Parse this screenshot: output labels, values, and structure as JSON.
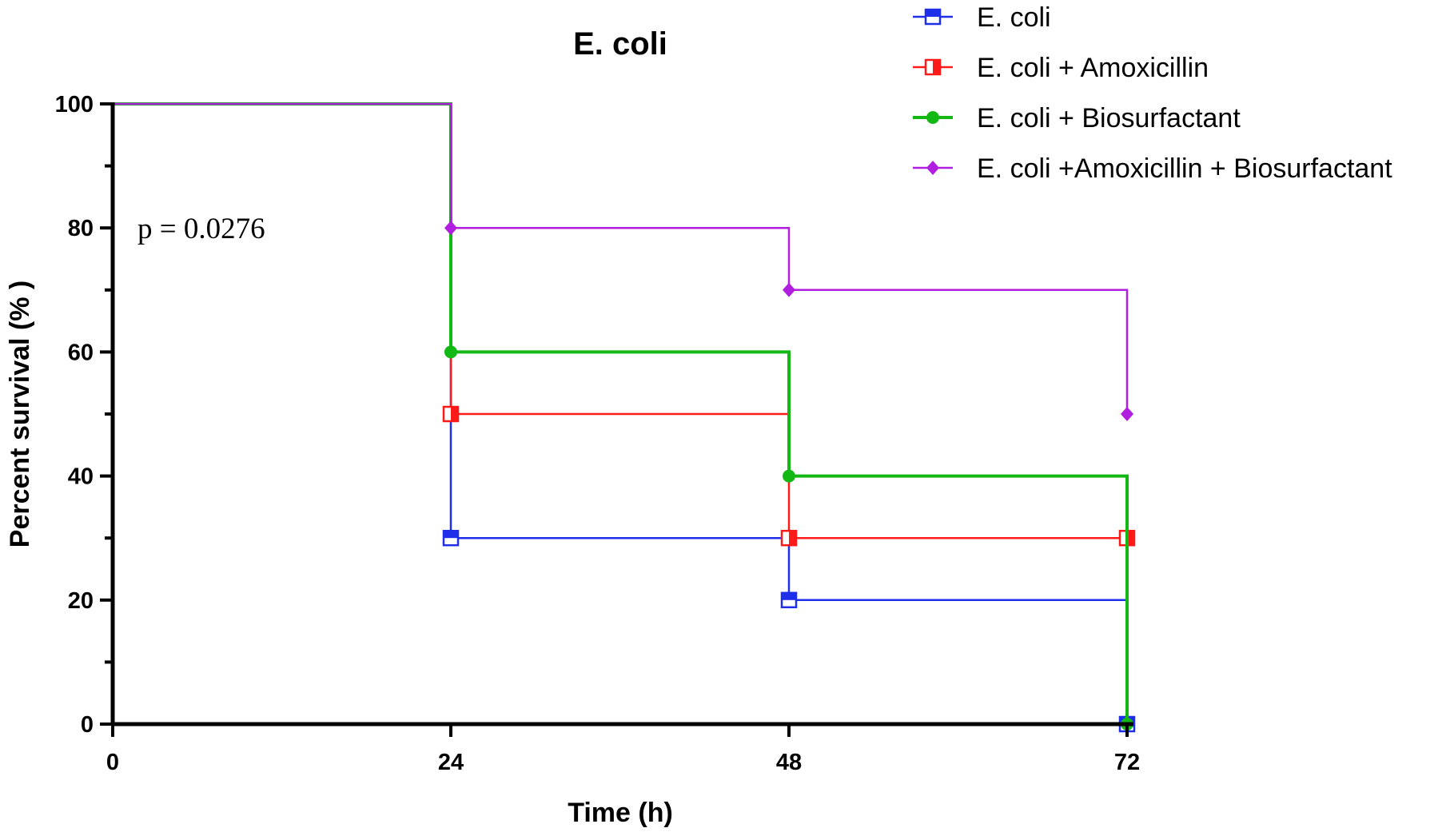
{
  "chart_data": {
    "type": "line",
    "subtype": "step (Kaplan-Meier survival)",
    "title": "E. coli",
    "xlabel": "Time (h)",
    "ylabel": "Percent survival (% )",
    "xlim": [
      0,
      72
    ],
    "ylim": [
      0,
      100
    ],
    "xticks": [
      "0",
      "24",
      "48",
      "72"
    ],
    "yticks": [
      "0",
      "20",
      "40",
      "60",
      "80",
      "100"
    ],
    "grid": false,
    "legend_position": "top-right",
    "annotation": "p = 0.0276",
    "series": [
      {
        "name": "E. coli",
        "color": "#1f2ee8",
        "marker": "square-half",
        "x": [
          0,
          24,
          48,
          72
        ],
        "y": [
          100,
          30,
          20,
          0
        ]
      },
      {
        "name": "E. coli + Amoxicillin",
        "color": "#ff1a1a",
        "marker": "square-half-side",
        "x": [
          0,
          24,
          48,
          72
        ],
        "y": [
          100,
          50,
          30,
          30
        ]
      },
      {
        "name": "E. coli + Biosurfactant",
        "color": "#14b814",
        "marker": "circle",
        "x": [
          0,
          24,
          48,
          72
        ],
        "y": [
          100,
          60,
          40,
          0
        ]
      },
      {
        "name": "E. coli +Amoxicillin + Biosurfactant",
        "color": "#b01ee0",
        "marker": "diamond",
        "x": [
          0,
          24,
          48,
          72
        ],
        "y": [
          100,
          80,
          70,
          50
        ]
      }
    ]
  }
}
